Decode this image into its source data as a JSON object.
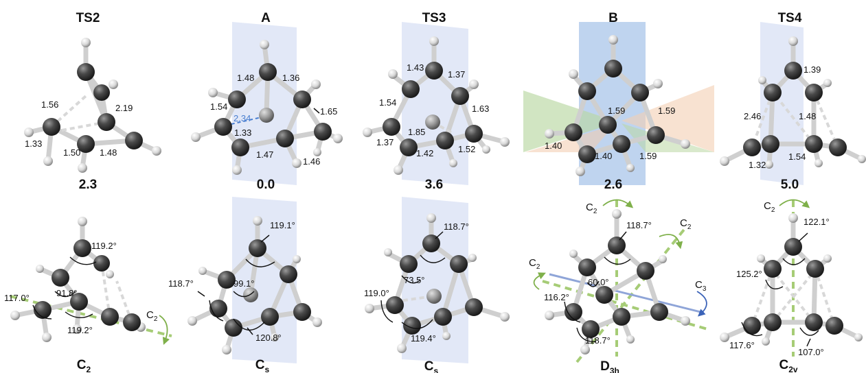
{
  "panels": [
    {
      "title": "TS2",
      "energy": "2.3",
      "symmetry_main": "C",
      "symmetry_sub": "2",
      "top_labels": [
        "1.56",
        "2.19",
        "1.33",
        "1.50",
        "1.48"
      ],
      "angle_labels": [
        "119.2°",
        "91.8°",
        "117.0°",
        "119.2°"
      ],
      "axis_labels": [
        {
          "main": "C",
          "sub": "2"
        }
      ]
    },
    {
      "title": "A",
      "energy": "0.0",
      "symmetry_main": "C",
      "symmetry_sub": "s",
      "top_labels": [
        "1.48",
        "1.36",
        "1.54",
        "1.65",
        "1.33",
        "1.47",
        "1.46"
      ],
      "highlight_label": "2.34",
      "angle_labels": [
        "119.1°",
        "118.7°",
        "99.1°",
        "120.8°"
      ]
    },
    {
      "title": "TS3",
      "energy": "3.6",
      "symmetry_main": "C",
      "symmetry_sub": "s",
      "top_labels": [
        "1.43",
        "1.37",
        "1.54",
        "1.63",
        "1.85",
        "1.37",
        "1.42",
        "1.52"
      ],
      "angle_labels": [
        "118.7°",
        "73.5°",
        "119.0°",
        "119.4°"
      ]
    },
    {
      "title": "B",
      "energy": "2.6",
      "symmetry_main": "D",
      "symmetry_sub": "3h",
      "top_labels": [
        "1.59",
        "1.59",
        "1.40",
        "1.40",
        "1.59"
      ],
      "angle_labels": [
        "118.7°",
        "60.0°",
        "116.2°",
        "118.7°"
      ],
      "axis_labels": [
        {
          "main": "C",
          "sub": "2"
        },
        {
          "main": "C",
          "sub": "2"
        },
        {
          "main": "C",
          "sub": "2"
        },
        {
          "main": "C",
          "sub": "3"
        }
      ]
    },
    {
      "title": "TS4",
      "energy": "5.0",
      "symmetry_main": "C",
      "symmetry_sub": "2v",
      "top_labels": [
        "1.39",
        "2.46",
        "1.48",
        "1.32",
        "1.54"
      ],
      "angle_labels": [
        "122.1°",
        "125.2°",
        "117.6°",
        "107.0°"
      ],
      "axis_labels": [
        {
          "main": "C",
          "sub": "2"
        }
      ]
    }
  ],
  "colors": {
    "mirror_plane": "#c9d3f0",
    "symmetry_axis": "#9cc36a",
    "c3_axis": "#7e96cf",
    "carbon": "#4a4a4a",
    "hydrogen": "#e2e2e2",
    "highlight": "#4a7fd0"
  }
}
